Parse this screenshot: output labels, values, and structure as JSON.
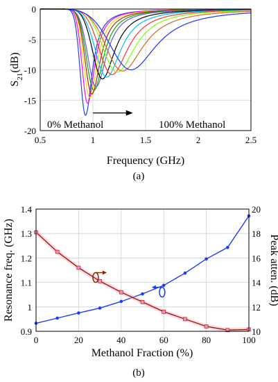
{
  "chart_data": [
    {
      "type": "line",
      "xlabel": "Frequency (GHz)",
      "ylabel_main": "S",
      "ylabel_sub": "21",
      "ylabel_unit": "(dB)",
      "caption": "(a)",
      "xlim": [
        0.5,
        2.5
      ],
      "ylim": [
        -20,
        0
      ],
      "xticks": [
        0.5,
        1,
        1.5,
        2,
        2.5
      ],
      "yticks": [
        -20,
        -15,
        -10,
        -5,
        0
      ],
      "xtick_labels": [
        "0.5",
        "1",
        "1.5",
        "2",
        "2.5"
      ],
      "ytick_labels": [
        "-20",
        "-15",
        "-10",
        "-5",
        "0"
      ],
      "grid": true,
      "annotation_left": "0% Methanol",
      "annotation_right": "100% Methanol",
      "annotation_arrow": {
        "from": [
          1.0,
          -17.1
        ],
        "to": [
          1.38,
          -17.1
        ]
      },
      "series": [
        {
          "color": "#1f3fff",
          "f0": 0.93,
          "depth": 17.5,
          "width": 0.07
        },
        {
          "color": "#ff00ff",
          "f0": 0.95,
          "depth": 15.5,
          "width": 0.075
        },
        {
          "color": "#ffd700",
          "f0": 0.97,
          "depth": 14.6,
          "width": 0.082
        },
        {
          "color": "#b22222",
          "f0": 0.99,
          "depth": 14.0,
          "width": 0.09
        },
        {
          "color": "#00aa00",
          "f0": 1.01,
          "depth": 13.4,
          "width": 0.1
        },
        {
          "color": "#6a5acd",
          "f0": 1.03,
          "depth": 12.8,
          "width": 0.11
        },
        {
          "color": "#000000",
          "f0": 1.09,
          "depth": 11.5,
          "width": 0.13
        },
        {
          "color": "#00bfff",
          "f0": 1.13,
          "depth": 11.2,
          "width": 0.15
        },
        {
          "color": "#ff3333",
          "f0": 1.18,
          "depth": 10.8,
          "width": 0.17
        },
        {
          "color": "#7fff00",
          "f0": 1.23,
          "depth": 10.4,
          "width": 0.19
        },
        {
          "color": "#d2691e",
          "f0": 1.28,
          "depth": 10.2,
          "width": 0.22
        },
        {
          "color": "#2030ff",
          "f0": 1.36,
          "depth": 10.0,
          "width": 0.27
        }
      ]
    },
    {
      "type": "line",
      "xlabel": "Methanol Fraction (%)",
      "ylabel_left": "Resonance freq. (GHz)",
      "ylabel_right": "Peak atten. (dB)",
      "caption": "(b)",
      "xlim": [
        0,
        100
      ],
      "ylim_left": [
        0.9,
        1.4
      ],
      "ylim_right": [
        10,
        20
      ],
      "xticks": [
        0,
        20,
        40,
        60,
        80,
        100
      ],
      "yticks_left": [
        0.9,
        1,
        1.1,
        1.2,
        1.3,
        1.4
      ],
      "yticks_right": [
        10,
        12,
        14,
        16,
        18,
        20
      ],
      "xtick_labels": [
        "0",
        "20",
        "40",
        "60",
        "80",
        "100"
      ],
      "ytick_left_labels": [
        "0.9",
        "1",
        "1.1",
        "1.2",
        "1.3",
        "1.4"
      ],
      "ytick_right_labels": [
        "10",
        "12",
        "14",
        "16",
        "18",
        "20"
      ],
      "grid": true,
      "x": [
        0,
        10,
        20,
        30,
        40,
        50,
        60,
        70,
        80,
        90,
        100
      ],
      "series": [
        {
          "axis": "left",
          "color": "#1a3cff",
          "values": [
            0.933,
            0.954,
            0.975,
            0.995,
            1.022,
            1.053,
            1.088,
            1.138,
            1.196,
            1.243,
            1.372
          ]
        },
        {
          "axis": "right",
          "color": "#8b2500",
          "marker_color": "#ff88bb",
          "values": [
            18.1,
            16.5,
            15.2,
            14.1,
            13.2,
            12.4,
            11.6,
            11.0,
            10.4,
            10.1,
            10.15
          ]
        }
      ],
      "marker_left": {
        "x": 56,
        "y": 1.06
      },
      "marker_right": {
        "x": 28,
        "y": 1.12
      }
    }
  ]
}
